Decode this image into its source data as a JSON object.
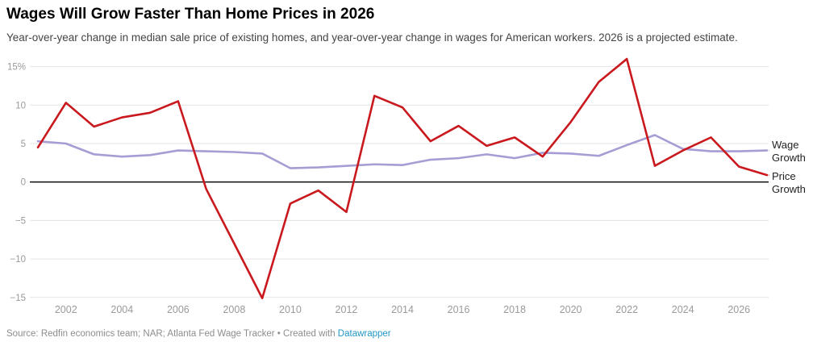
{
  "chart_data": {
    "type": "line",
    "title": "Wages Will Grow Faster Than Home Prices in 2026",
    "subtitle": "Year-over-year change in median sale price of existing homes, and year-over-year change in wages for American workers. 2026 is a projected estimate.",
    "unit": "percent",
    "x": [
      2001,
      2002,
      2003,
      2004,
      2005,
      2006,
      2007,
      2008,
      2009,
      2010,
      2011,
      2012,
      2013,
      2014,
      2015,
      2016,
      2017,
      2018,
      2019,
      2020,
      2021,
      2022,
      2023,
      2024,
      2025,
      2026,
      2027
    ],
    "series": [
      {
        "name": "Wage Growth",
        "color": "#a89cd4",
        "values": [
          5.3,
          5.0,
          3.6,
          3.3,
          3.5,
          4.1,
          4.0,
          3.9,
          3.7,
          1.8,
          1.9,
          2.1,
          2.3,
          2.2,
          2.9,
          3.1,
          3.6,
          3.1,
          3.8,
          3.7,
          3.4,
          4.8,
          6.1,
          4.3,
          4.0,
          4.0,
          4.1
        ]
      },
      {
        "name": "Price Growth",
        "color": "#c9191e",
        "values": [
          4.5,
          10.3,
          7.2,
          8.4,
          9.0,
          10.5,
          -0.9,
          -8.0,
          -15.1,
          -2.8,
          -1.1,
          -3.9,
          11.2,
          9.7,
          5.3,
          7.3,
          4.7,
          5.8,
          3.3,
          7.8,
          13.0,
          16.0,
          2.1,
          4.1,
          5.8,
          2.0,
          0.9
        ]
      }
    ],
    "ylim": [
      -15,
      15
    ],
    "xlim": [
      2000.7,
      2027.1
    ],
    "yticks": [
      15,
      10,
      5,
      0,
      -5,
      -10,
      -15
    ],
    "ytick_labels": [
      "15%",
      "10",
      "5",
      "0",
      "−5",
      "−10",
      "−15"
    ],
    "xticks": [
      2002,
      2004,
      2006,
      2008,
      2010,
      2012,
      2014,
      2016,
      2018,
      2020,
      2022,
      2024,
      2026
    ],
    "grid": "horizontal",
    "zero_line": true,
    "legend_position": "right-direct-labels"
  },
  "footer": {
    "source_text": "Source: Redfin economics team; NAR; Atlanta Fed Wage Tracker",
    "separator": "•",
    "credit_text": "Created with",
    "credit_link": "Datawrapper"
  }
}
